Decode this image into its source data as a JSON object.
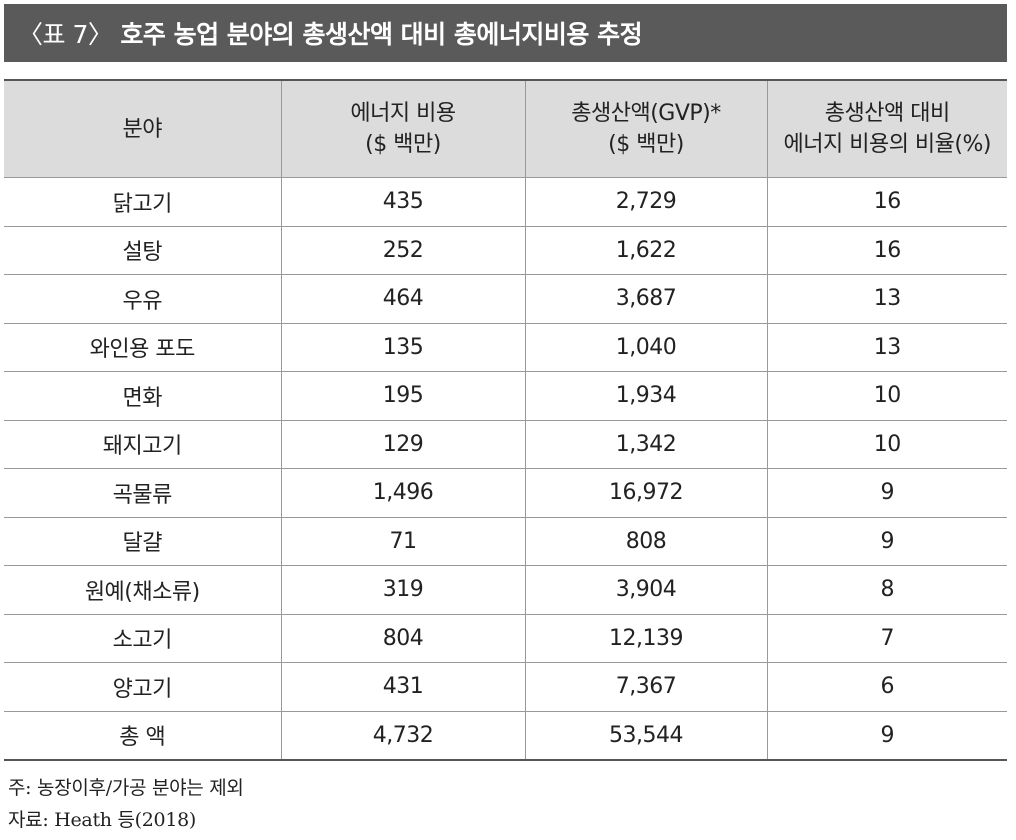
{
  "title": {
    "label": "〈표 7〉",
    "text": "호주 농업 분야의 총생산액 대비 총에너지비용 추정"
  },
  "table": {
    "headers": [
      [
        "분야"
      ],
      [
        "에너지 비용",
        "($ 백만)"
      ],
      [
        "총생산액(GVP)*",
        "($ 백만)"
      ],
      [
        "총생산액 대비",
        "에너지 비용의 비율(%)"
      ]
    ],
    "rows": [
      [
        "닭고기",
        "435",
        "2,729",
        "16"
      ],
      [
        "설탕",
        "252",
        "1,622",
        "16"
      ],
      [
        "우유",
        "464",
        "3,687",
        "13"
      ],
      [
        "와인용 포도",
        "135",
        "1,040",
        "13"
      ],
      [
        "면화",
        "195",
        "1,934",
        "10"
      ],
      [
        "돼지고기",
        "129",
        "1,342",
        "10"
      ],
      [
        "곡물류",
        "1,496",
        "16,972",
        "9"
      ],
      [
        "달걀",
        "71",
        "808",
        "9"
      ],
      [
        "원예(채소류)",
        "319",
        "3,904",
        "8"
      ],
      [
        "소고기",
        "804",
        "12,139",
        "7"
      ],
      [
        "양고기",
        "431",
        "7,367",
        "6"
      ],
      [
        "총 액",
        "4,732",
        "53,544",
        "9"
      ]
    ]
  },
  "notes": {
    "note": "주: 농장이후/가공 분야는 제외",
    "source": "자료: Heath 등(2018)"
  }
}
